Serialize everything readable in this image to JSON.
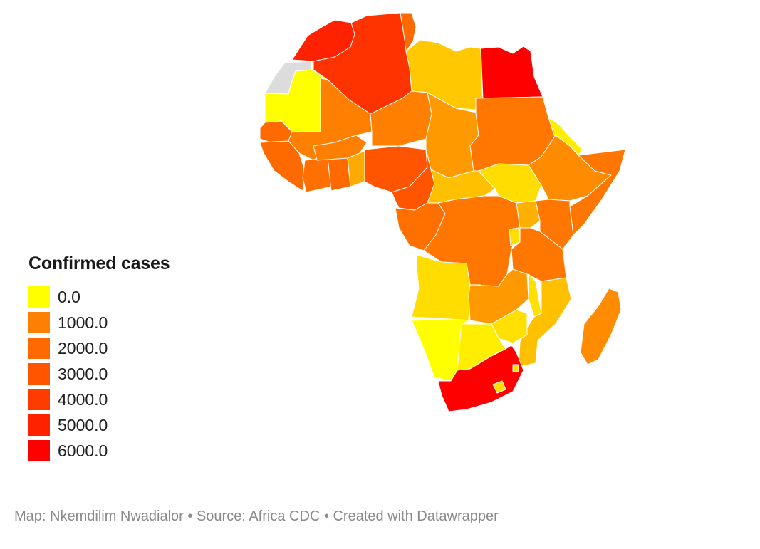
{
  "legend": {
    "title": "Confirmed cases",
    "items": [
      {
        "label": "0.0",
        "color": "#ffff00"
      },
      {
        "label": "1000.0",
        "color": "#ff8000"
      },
      {
        "label": "2000.0",
        "color": "#ff6a00"
      },
      {
        "label": "3000.0",
        "color": "#ff5500"
      },
      {
        "label": "4000.0",
        "color": "#ff3c00"
      },
      {
        "label": "5000.0",
        "color": "#ff2200"
      },
      {
        "label": "6000.0",
        "color": "#ff0000"
      }
    ]
  },
  "footer": {
    "credit": "Map: Nkemdilim Nwadialor • Source: Africa CDC • Created with Datawrapper"
  },
  "map": {
    "no_data_color": "#dcdcdc",
    "regions": [
      {
        "name": "western-sahara",
        "color": "#dcdcdc"
      },
      {
        "name": "morocco",
        "color": "#ff2200"
      },
      {
        "name": "algeria",
        "color": "#ff3300"
      },
      {
        "name": "tunisia",
        "color": "#ff6a00"
      },
      {
        "name": "libya",
        "color": "#ffc800"
      },
      {
        "name": "egypt",
        "color": "#ff0000"
      },
      {
        "name": "mauritania",
        "color": "#ffff00"
      },
      {
        "name": "senegal-region",
        "color": "#ff6a00"
      },
      {
        "name": "mali",
        "color": "#ff8000"
      },
      {
        "name": "niger",
        "color": "#ff8000"
      },
      {
        "name": "chad",
        "color": "#ff9900"
      },
      {
        "name": "sudan",
        "color": "#ff7700"
      },
      {
        "name": "eritrea-djibouti",
        "color": "#ffee00"
      },
      {
        "name": "guinea-region",
        "color": "#ff6a00"
      },
      {
        "name": "ivory-coast",
        "color": "#ff7000"
      },
      {
        "name": "ghana",
        "color": "#ff6a00"
      },
      {
        "name": "burkina-faso",
        "color": "#ff8000"
      },
      {
        "name": "togo-benin",
        "color": "#ffaa00"
      },
      {
        "name": "nigeria",
        "color": "#ff5500"
      },
      {
        "name": "cameroon",
        "color": "#ff5500"
      },
      {
        "name": "central-african-republic",
        "color": "#ffc000"
      },
      {
        "name": "south-sudan",
        "color": "#ffdd00"
      },
      {
        "name": "ethiopia",
        "color": "#ff8c00"
      },
      {
        "name": "somalia",
        "color": "#ff7700"
      },
      {
        "name": "gabon-congo",
        "color": "#ff7000"
      },
      {
        "name": "dr-congo",
        "color": "#ff7700"
      },
      {
        "name": "uganda",
        "color": "#ffb000"
      },
      {
        "name": "kenya",
        "color": "#ff7700"
      },
      {
        "name": "rwanda-burundi",
        "color": "#ffdd00"
      },
      {
        "name": "tanzania",
        "color": "#ff7700"
      },
      {
        "name": "angola",
        "color": "#ffdd00"
      },
      {
        "name": "zambia",
        "color": "#ff9900"
      },
      {
        "name": "malawi",
        "color": "#ffe000"
      },
      {
        "name": "mozambique",
        "color": "#ffc000"
      },
      {
        "name": "zimbabwe",
        "color": "#ffe000"
      },
      {
        "name": "namibia",
        "color": "#ffff00"
      },
      {
        "name": "botswana",
        "color": "#ffee00"
      },
      {
        "name": "south-africa",
        "color": "#ff0000"
      },
      {
        "name": "lesotho",
        "color": "#ffdd00"
      },
      {
        "name": "eswatini",
        "color": "#ffdd00"
      },
      {
        "name": "madagascar",
        "color": "#ff8c00"
      }
    ]
  }
}
